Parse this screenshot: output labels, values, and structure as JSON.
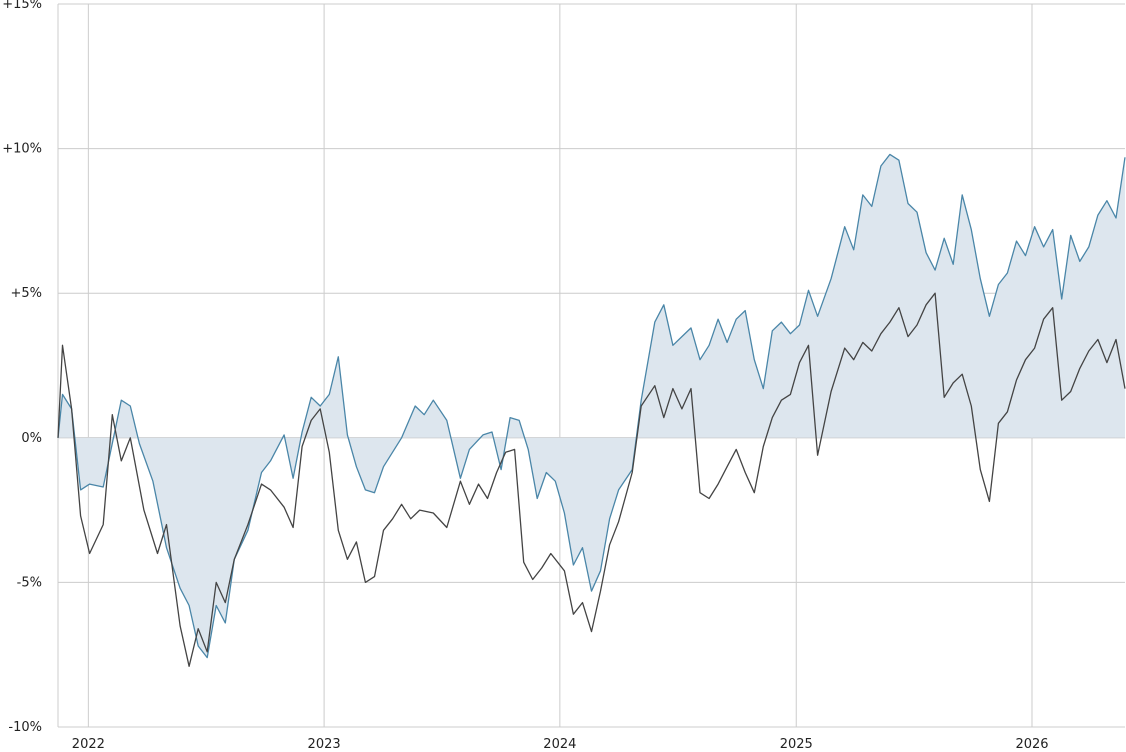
{
  "colors": {
    "fund_line": "#4a86a8",
    "fund_fill": "#dde6ee",
    "benchmark_line": "#444444",
    "grid": "#cccccc",
    "background": "#ffffff"
  },
  "chart_data": {
    "type": "line",
    "title": "",
    "xlabel": "",
    "ylabel": "",
    "x_range": [
      "2021-11-15",
      "2026-05-25"
    ],
    "ylim": [
      -10,
      15
    ],
    "y_unit": "%",
    "grid": true,
    "y_ticks": [
      {
        "value": -10,
        "label": "-10%"
      },
      {
        "value": -5,
        "label": "-5%"
      },
      {
        "value": 0,
        "label": "0%"
      },
      {
        "value": 5,
        "label": "+5%"
      },
      {
        "value": 10,
        "label": "+10%"
      },
      {
        "value": 15,
        "label": "+15%"
      }
    ],
    "x_ticks": [
      {
        "date": "2022-01-01",
        "label": "2022"
      },
      {
        "date": "2023-01-01",
        "label": "2023"
      },
      {
        "date": "2024-01-01",
        "label": "2024"
      },
      {
        "date": "2025-01-01",
        "label": "2025"
      },
      {
        "date": "2026-01-01",
        "label": "2026"
      }
    ],
    "x_gridlines": [
      "2022-01-01",
      "2023-01-01",
      "2024-01-01",
      "2025-01-01",
      "2026-01-01"
    ],
    "series": [
      {
        "fill_to_zero": true,
        "points": [
          [
            "2021-11-15",
            0.0
          ],
          [
            "2021-11-22",
            1.5
          ],
          [
            "2021-12-06",
            1.0
          ],
          [
            "2021-12-20",
            -1.8
          ],
          [
            "2022-01-03",
            -1.6
          ],
          [
            "2022-01-24",
            -1.7
          ],
          [
            "2022-02-21",
            1.3
          ],
          [
            "2022-03-07",
            1.1
          ],
          [
            "2022-03-21",
            -0.2
          ],
          [
            "2022-04-11",
            -1.5
          ],
          [
            "2022-05-02",
            -3.8
          ],
          [
            "2022-05-23",
            -5.2
          ],
          [
            "2022-06-06",
            -5.8
          ],
          [
            "2022-06-20",
            -7.2
          ],
          [
            "2022-07-04",
            -7.6
          ],
          [
            "2022-07-18",
            -5.8
          ],
          [
            "2022-08-01",
            -6.4
          ],
          [
            "2022-08-15",
            -4.2
          ],
          [
            "2022-09-05",
            -3.2
          ],
          [
            "2022-09-26",
            -1.2
          ],
          [
            "2022-10-10",
            -0.8
          ],
          [
            "2022-10-31",
            0.1
          ],
          [
            "2022-11-14",
            -1.4
          ],
          [
            "2022-11-28",
            0.2
          ],
          [
            "2022-12-12",
            1.4
          ],
          [
            "2022-12-26",
            1.1
          ],
          [
            "2023-01-09",
            1.5
          ],
          [
            "2023-01-23",
            2.8
          ],
          [
            "2023-02-06",
            0.1
          ],
          [
            "2023-02-20",
            -1.0
          ],
          [
            "2023-03-06",
            -1.8
          ],
          [
            "2023-03-20",
            -1.9
          ],
          [
            "2023-04-03",
            -1.0
          ],
          [
            "2023-05-01",
            0.0
          ],
          [
            "2023-05-22",
            1.1
          ],
          [
            "2023-06-05",
            0.8
          ],
          [
            "2023-06-19",
            1.3
          ],
          [
            "2023-07-10",
            0.6
          ],
          [
            "2023-07-31",
            -1.4
          ],
          [
            "2023-08-14",
            -0.4
          ],
          [
            "2023-09-04",
            0.1
          ],
          [
            "2023-09-18",
            0.2
          ],
          [
            "2023-10-02",
            -1.1
          ],
          [
            "2023-10-16",
            0.7
          ],
          [
            "2023-10-30",
            0.6
          ],
          [
            "2023-11-13",
            -0.4
          ],
          [
            "2023-11-27",
            -2.1
          ],
          [
            "2023-12-11",
            -1.2
          ],
          [
            "2023-12-25",
            -1.5
          ],
          [
            "2024-01-08",
            -2.6
          ],
          [
            "2024-01-22",
            -4.4
          ],
          [
            "2024-02-05",
            -3.8
          ],
          [
            "2024-02-19",
            -5.3
          ],
          [
            "2024-03-04",
            -4.6
          ],
          [
            "2024-03-18",
            -2.8
          ],
          [
            "2024-04-01",
            -1.8
          ],
          [
            "2024-04-22",
            -1.1
          ],
          [
            "2024-05-06",
            1.3
          ],
          [
            "2024-05-27",
            4.0
          ],
          [
            "2024-06-10",
            4.6
          ],
          [
            "2024-06-24",
            3.2
          ],
          [
            "2024-07-08",
            3.5
          ],
          [
            "2024-07-22",
            3.8
          ],
          [
            "2024-08-05",
            2.7
          ],
          [
            "2024-08-19",
            3.2
          ],
          [
            "2024-09-02",
            4.1
          ],
          [
            "2024-09-16",
            3.3
          ],
          [
            "2024-09-30",
            4.1
          ],
          [
            "2024-10-14",
            4.4
          ],
          [
            "2024-10-28",
            2.7
          ],
          [
            "2024-11-11",
            1.7
          ],
          [
            "2024-11-25",
            3.7
          ],
          [
            "2024-12-09",
            4.0
          ],
          [
            "2024-12-23",
            3.6
          ],
          [
            "2025-01-06",
            3.9
          ],
          [
            "2025-01-20",
            5.1
          ],
          [
            "2025-02-03",
            4.2
          ],
          [
            "2025-02-24",
            5.5
          ],
          [
            "2025-03-17",
            7.3
          ],
          [
            "2025-03-31",
            6.5
          ],
          [
            "2025-04-14",
            8.4
          ],
          [
            "2025-04-28",
            8.0
          ],
          [
            "2025-05-12",
            9.4
          ],
          [
            "2025-05-26",
            9.8
          ],
          [
            "2025-06-09",
            9.6
          ],
          [
            "2025-06-23",
            8.1
          ],
          [
            "2025-07-07",
            7.8
          ],
          [
            "2025-07-21",
            6.4
          ],
          [
            "2025-08-04",
            5.8
          ],
          [
            "2025-08-18",
            6.9
          ],
          [
            "2025-09-01",
            6.0
          ],
          [
            "2025-09-15",
            8.4
          ],
          [
            "2025-09-29",
            7.2
          ],
          [
            "2025-10-13",
            5.5
          ],
          [
            "2025-10-27",
            4.2
          ],
          [
            "2025-11-10",
            5.3
          ],
          [
            "2025-11-24",
            5.7
          ],
          [
            "2025-12-08",
            6.8
          ],
          [
            "2025-12-22",
            6.3
          ],
          [
            "2026-01-05",
            7.3
          ],
          [
            "2026-01-19",
            6.6
          ],
          [
            "2026-02-02",
            7.2
          ],
          [
            "2026-02-16",
            4.8
          ],
          [
            "2026-03-02",
            7.0
          ],
          [
            "2026-03-16",
            6.1
          ],
          [
            "2026-03-30",
            6.6
          ],
          [
            "2026-04-13",
            7.7
          ],
          [
            "2026-04-27",
            8.2
          ],
          [
            "2026-05-11",
            7.6
          ],
          [
            "2026-05-25",
            9.7
          ]
        ]
      },
      {
        "fill_to_zero": false,
        "points": [
          [
            "2021-11-15",
            0.0
          ],
          [
            "2021-11-22",
            3.2
          ],
          [
            "2021-12-06",
            1.0
          ],
          [
            "2021-12-20",
            -2.7
          ],
          [
            "2022-01-03",
            -4.0
          ],
          [
            "2022-01-24",
            -3.0
          ],
          [
            "2022-02-07",
            0.8
          ],
          [
            "2022-02-21",
            -0.8
          ],
          [
            "2022-03-07",
            0.0
          ],
          [
            "2022-03-28",
            -2.5
          ],
          [
            "2022-04-18",
            -4.0
          ],
          [
            "2022-05-02",
            -3.0
          ],
          [
            "2022-05-23",
            -6.5
          ],
          [
            "2022-06-06",
            -7.9
          ],
          [
            "2022-06-20",
            -6.6
          ],
          [
            "2022-07-04",
            -7.4
          ],
          [
            "2022-07-18",
            -5.0
          ],
          [
            "2022-08-01",
            -5.7
          ],
          [
            "2022-08-15",
            -4.2
          ],
          [
            "2022-09-05",
            -3.0
          ],
          [
            "2022-09-26",
            -1.6
          ],
          [
            "2022-10-10",
            -1.8
          ],
          [
            "2022-10-31",
            -2.4
          ],
          [
            "2022-11-14",
            -3.1
          ],
          [
            "2022-11-28",
            -0.3
          ],
          [
            "2022-12-12",
            0.6
          ],
          [
            "2022-12-26",
            1.0
          ],
          [
            "2023-01-09",
            -0.5
          ],
          [
            "2023-01-23",
            -3.2
          ],
          [
            "2023-02-06",
            -4.2
          ],
          [
            "2023-02-20",
            -3.6
          ],
          [
            "2023-03-06",
            -5.0
          ],
          [
            "2023-03-20",
            -4.8
          ],
          [
            "2023-04-03",
            -3.2
          ],
          [
            "2023-04-17",
            -2.8
          ],
          [
            "2023-05-01",
            -2.3
          ],
          [
            "2023-05-15",
            -2.8
          ],
          [
            "2023-05-29",
            -2.5
          ],
          [
            "2023-06-19",
            -2.6
          ],
          [
            "2023-07-10",
            -3.1
          ],
          [
            "2023-07-31",
            -1.5
          ],
          [
            "2023-08-14",
            -2.3
          ],
          [
            "2023-08-28",
            -1.6
          ],
          [
            "2023-09-11",
            -2.1
          ],
          [
            "2023-09-25",
            -1.2
          ],
          [
            "2023-10-09",
            -0.5
          ],
          [
            "2023-10-23",
            -0.4
          ],
          [
            "2023-11-06",
            -4.3
          ],
          [
            "2023-11-20",
            -4.9
          ],
          [
            "2023-12-04",
            -4.5
          ],
          [
            "2023-12-18",
            -4.0
          ],
          [
            "2024-01-08",
            -4.6
          ],
          [
            "2024-01-22",
            -6.1
          ],
          [
            "2024-02-05",
            -5.7
          ],
          [
            "2024-02-19",
            -6.7
          ],
          [
            "2024-03-04",
            -5.3
          ],
          [
            "2024-03-18",
            -3.7
          ],
          [
            "2024-04-01",
            -2.9
          ],
          [
            "2024-04-22",
            -1.2
          ],
          [
            "2024-05-06",
            1.1
          ],
          [
            "2024-05-27",
            1.8
          ],
          [
            "2024-06-10",
            0.7
          ],
          [
            "2024-06-24",
            1.7
          ],
          [
            "2024-07-08",
            1.0
          ],
          [
            "2024-07-22",
            1.7
          ],
          [
            "2024-08-05",
            -1.9
          ],
          [
            "2024-08-19",
            -2.1
          ],
          [
            "2024-09-02",
            -1.6
          ],
          [
            "2024-09-16",
            -1.0
          ],
          [
            "2024-09-30",
            -0.4
          ],
          [
            "2024-10-14",
            -1.2
          ],
          [
            "2024-10-28",
            -1.9
          ],
          [
            "2024-11-11",
            -0.3
          ],
          [
            "2024-11-25",
            0.7
          ],
          [
            "2024-12-09",
            1.3
          ],
          [
            "2024-12-23",
            1.5
          ],
          [
            "2025-01-06",
            2.6
          ],
          [
            "2025-01-20",
            3.2
          ],
          [
            "2025-02-03",
            -0.6
          ],
          [
            "2025-02-24",
            1.6
          ],
          [
            "2025-03-17",
            3.1
          ],
          [
            "2025-03-31",
            2.7
          ],
          [
            "2025-04-14",
            3.3
          ],
          [
            "2025-04-28",
            3.0
          ],
          [
            "2025-05-12",
            3.6
          ],
          [
            "2025-05-26",
            4.0
          ],
          [
            "2025-06-09",
            4.5
          ],
          [
            "2025-06-23",
            3.5
          ],
          [
            "2025-07-07",
            3.9
          ],
          [
            "2025-07-21",
            4.6
          ],
          [
            "2025-08-04",
            5.0
          ],
          [
            "2025-08-18",
            1.4
          ],
          [
            "2025-09-01",
            1.9
          ],
          [
            "2025-09-15",
            2.2
          ],
          [
            "2025-09-29",
            1.1
          ],
          [
            "2025-10-13",
            -1.1
          ],
          [
            "2025-10-27",
            -2.2
          ],
          [
            "2025-11-10",
            0.5
          ],
          [
            "2025-11-24",
            0.9
          ],
          [
            "2025-12-08",
            2.0
          ],
          [
            "2025-12-22",
            2.7
          ],
          [
            "2026-01-05",
            3.1
          ],
          [
            "2026-01-19",
            4.1
          ],
          [
            "2026-02-02",
            4.5
          ],
          [
            "2026-02-16",
            1.3
          ],
          [
            "2026-03-02",
            1.6
          ],
          [
            "2026-03-16",
            2.4
          ],
          [
            "2026-03-30",
            3.0
          ],
          [
            "2026-04-13",
            3.4
          ],
          [
            "2026-04-27",
            2.6
          ],
          [
            "2026-05-11",
            3.4
          ],
          [
            "2026-05-25",
            1.7
          ]
        ]
      }
    ]
  }
}
